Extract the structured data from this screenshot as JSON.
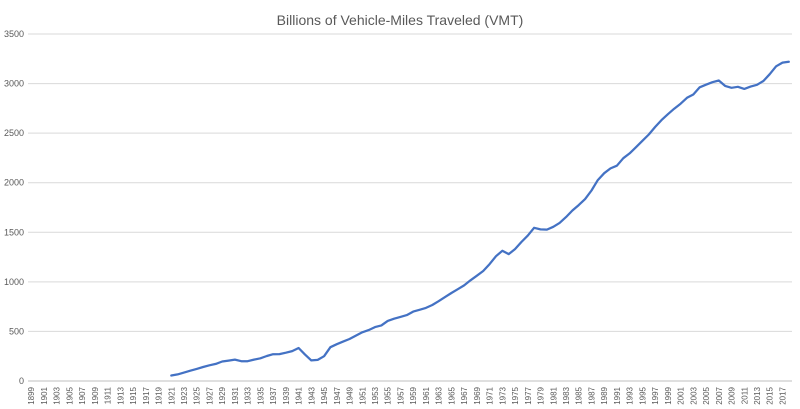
{
  "chart_data": {
    "type": "line",
    "title": "Billions of Vehicle-Miles Traveled (VMT)",
    "xlabel": "",
    "ylabel": "",
    "xlim": [
      1899,
      2018
    ],
    "ylim": [
      0,
      3500
    ],
    "yticks": [
      0,
      500,
      1000,
      1500,
      2000,
      2500,
      3000,
      3500
    ],
    "xtick_labels": [
      "1899",
      "1901",
      "1903",
      "1905",
      "1907",
      "1909",
      "1911",
      "1913",
      "1915",
      "1917",
      "1919",
      "1921",
      "1923",
      "1925",
      "1927",
      "1929",
      "1931",
      "1933",
      "1935",
      "1937",
      "1939",
      "1941",
      "1943",
      "1945",
      "1947",
      "1949",
      "1951",
      "1953",
      "1955",
      "1957",
      "1959",
      "1961",
      "1963",
      "1965",
      "1967",
      "1969",
      "1971",
      "1973",
      "1975",
      "1977",
      "1979",
      "1981",
      "1983",
      "1985",
      "1987",
      "1989",
      "1991",
      "1993",
      "1995",
      "1997",
      "1999",
      "2001",
      "2003",
      "2005",
      "2007",
      "2009",
      "2011",
      "2013",
      "2015",
      "2017"
    ],
    "grid": "horizontal",
    "legend": "none",
    "color": "#4472C4",
    "series": [
      {
        "x": [
          1921,
          1922,
          1923,
          1924,
          1925,
          1926,
          1927,
          1928,
          1929,
          1930,
          1931,
          1932,
          1933,
          1934,
          1935,
          1936,
          1937,
          1938,
          1939,
          1940,
          1941,
          1942,
          1943,
          1944,
          1945,
          1946,
          1947,
          1948,
          1949,
          1950,
          1951,
          1952,
          1953,
          1954,
          1955,
          1956,
          1957,
          1958,
          1959,
          1960,
          1961,
          1962,
          1963,
          1964,
          1965,
          1966,
          1967,
          1968,
          1969,
          1970,
          1971,
          1972,
          1973,
          1974,
          1975,
          1976,
          1977,
          1978,
          1979,
          1980,
          1981,
          1982,
          1983,
          1984,
          1985,
          1986,
          1987,
          1988,
          1989,
          1990,
          1991,
          1992,
          1993,
          1994,
          1995,
          1996,
          1997,
          1998,
          1999,
          2000,
          2001,
          2002,
          2003,
          2004,
          2005,
          2006,
          2007,
          2008,
          2009,
          2010,
          2011,
          2012,
          2013,
          2014,
          2015,
          2016,
          2017,
          2018
        ],
        "y": [
          55,
          67,
          85,
          104,
          122,
          141,
          158,
          172,
          197,
          206,
          216,
          200,
          200,
          216,
          229,
          252,
          270,
          271,
          285,
          302,
          333,
          268,
          208,
          213,
          250,
          341,
          371,
          397,
          424,
          458,
          491,
          513,
          544,
          561,
          606,
          628,
          647,
          665,
          700,
          718,
          737,
          767,
          805,
          846,
          888,
          926,
          964,
          1016,
          1062,
          1110,
          1179,
          1259,
          1313,
          1280,
          1330,
          1402,
          1467,
          1545,
          1529,
          1527,
          1555,
          1595,
          1653,
          1720,
          1774,
          1835,
          1921,
          2026,
          2096,
          2144,
          2172,
          2247,
          2296,
          2358,
          2423,
          2486,
          2562,
          2632,
          2691,
          2747,
          2797,
          2856,
          2890,
          2962,
          2989,
          3014,
          3031,
          2977,
          2957,
          2967,
          2946,
          2969,
          2988,
          3026,
          3095,
          3174,
          3212,
          3220
        ]
      }
    ]
  }
}
